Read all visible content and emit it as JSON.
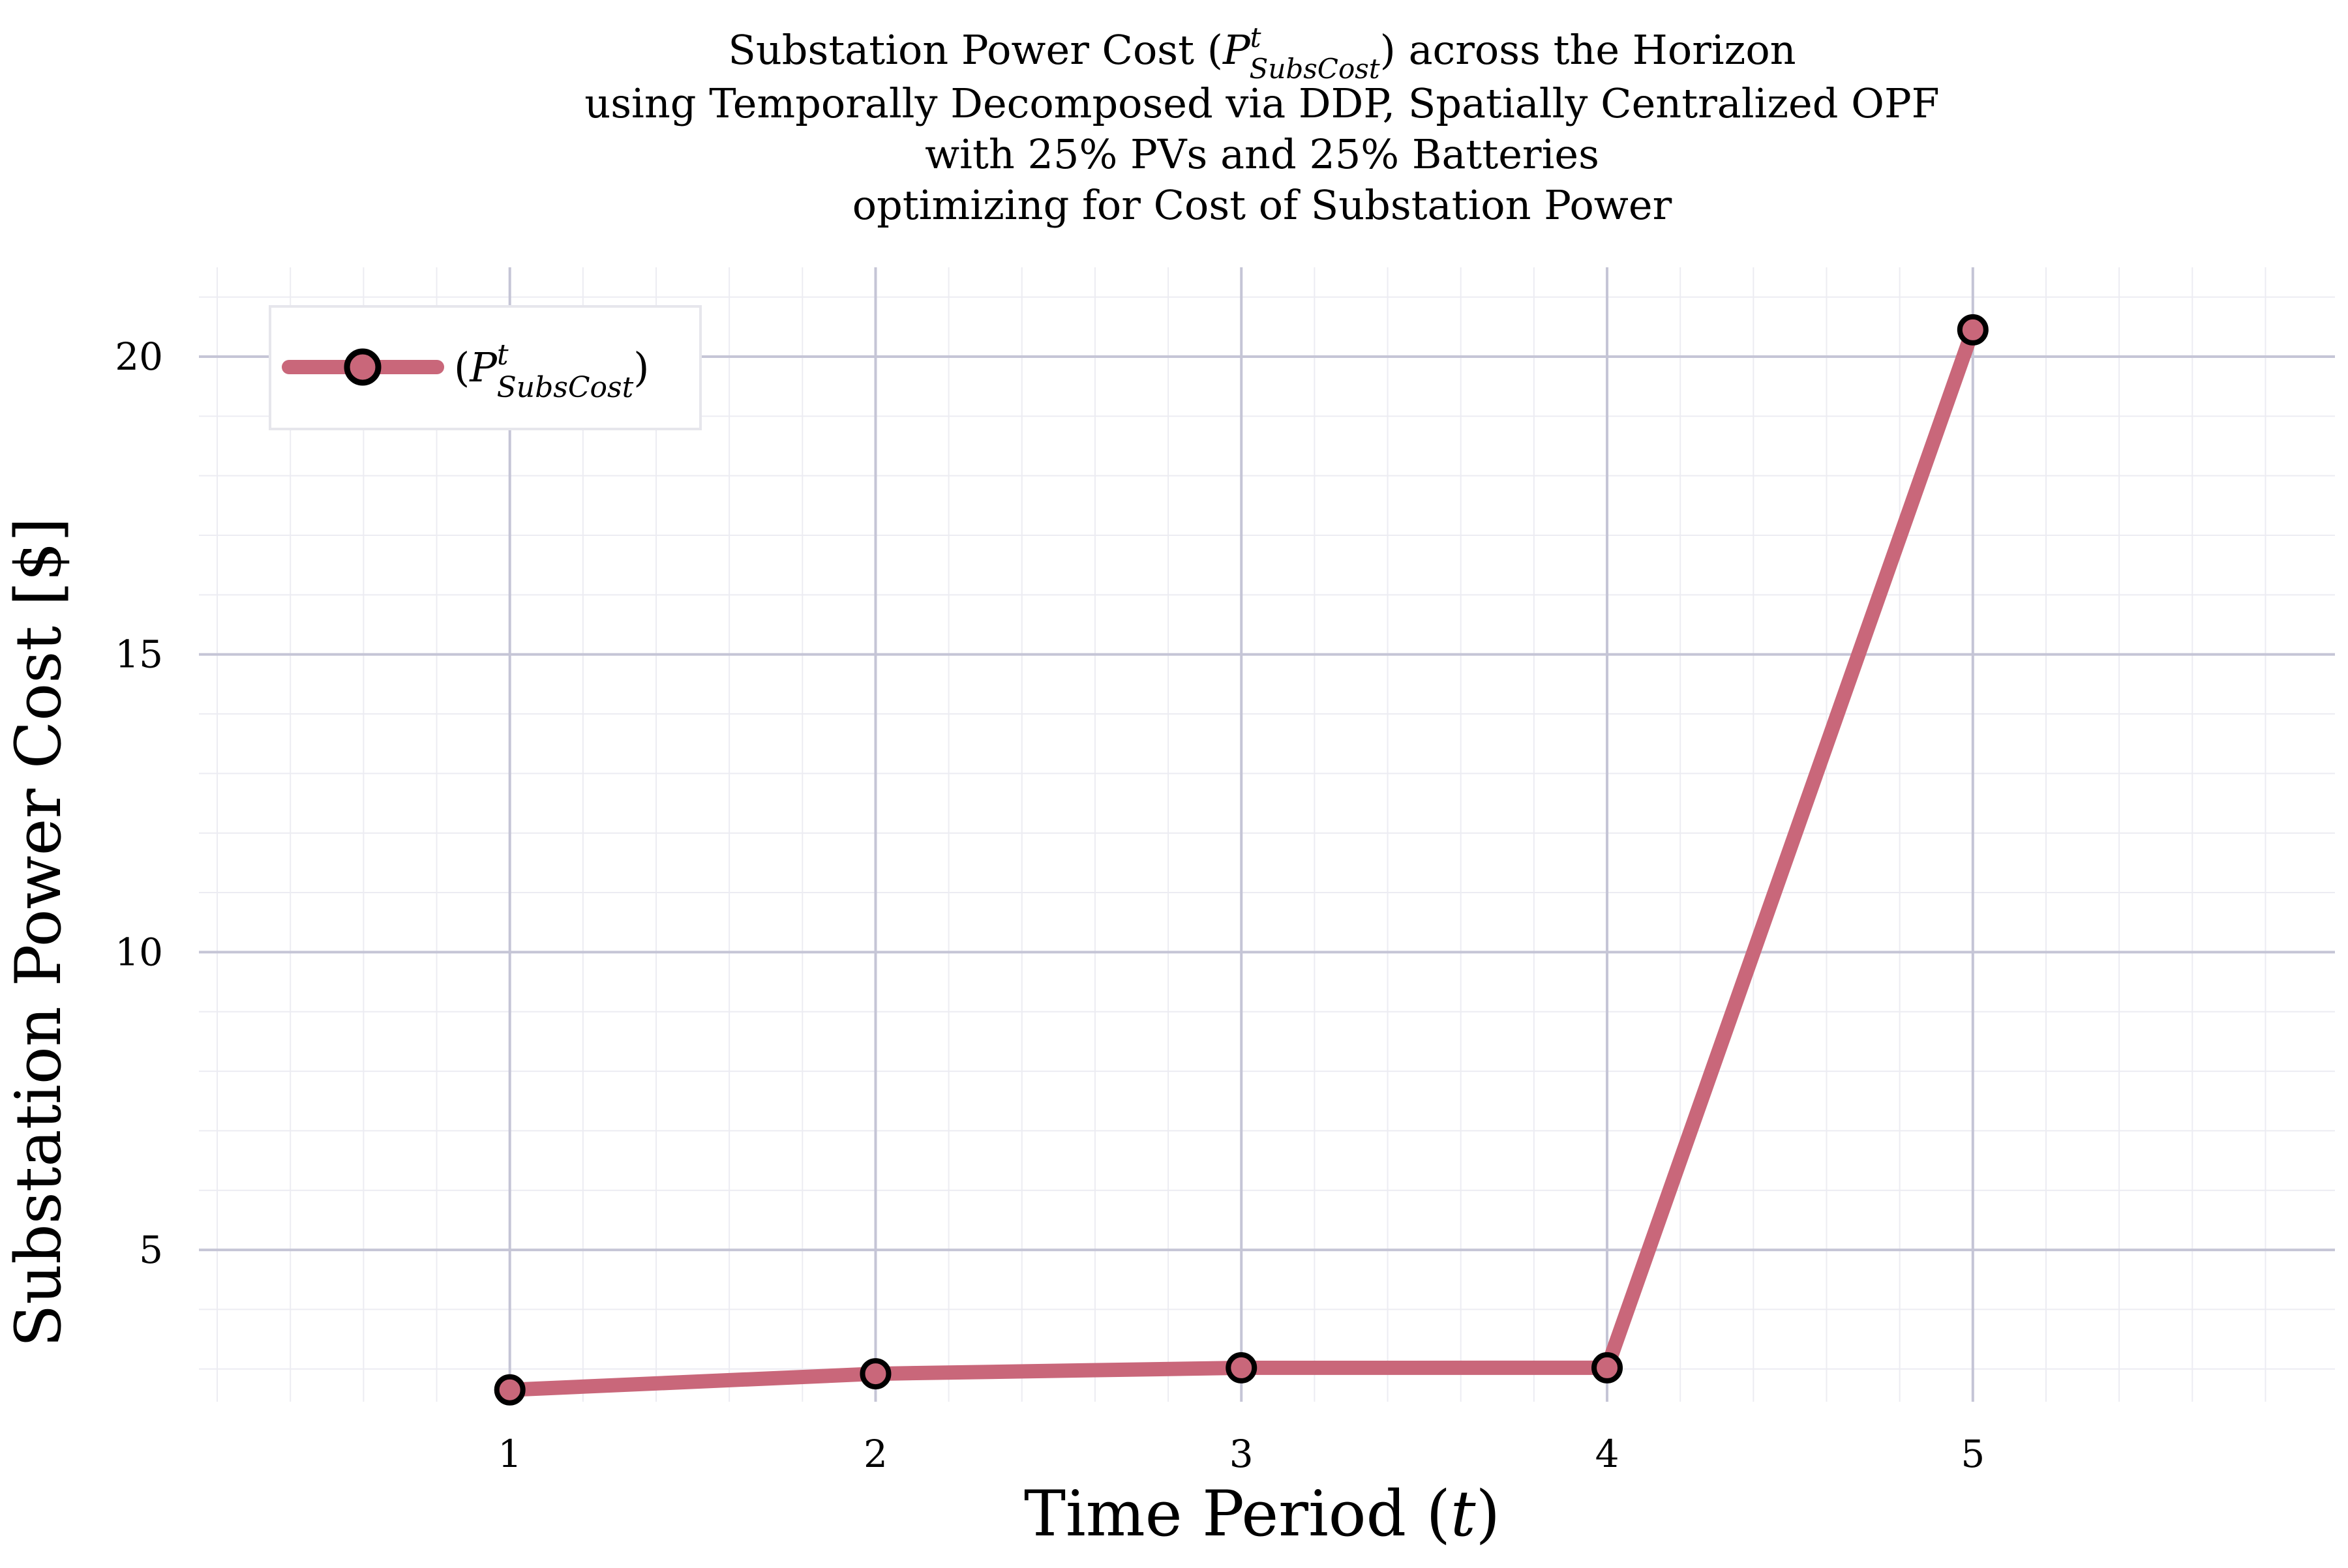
{
  "chart_data": {
    "type": "line",
    "title_lines": [
      {
        "pre": "Substation Power Cost (",
        "sym": "P",
        "sup": "t",
        "sub": "SubsCost",
        "post": ") across the Horizon"
      },
      {
        "text": "using Temporally Decomposed via DDP, Spatially Centralized OPF"
      },
      {
        "text": "with 25% PVs and 25% Batteries"
      },
      {
        "text": "optimizing for Cost of Substation Power"
      }
    ],
    "xlabel": {
      "pre": "Time Period (",
      "sym": "t",
      "post": ")"
    },
    "ylabel": "Substation Power Cost [$]",
    "x": [
      1,
      2,
      3,
      4,
      5
    ],
    "x_ticks": [
      "1",
      "2",
      "3",
      "4",
      "5"
    ],
    "xlim": [
      0.15,
      5.99
    ],
    "y_ticks": [
      "5",
      "10",
      "15",
      "20"
    ],
    "y_tick_values": [
      5,
      10,
      15,
      20
    ],
    "ylim": [
      2.45,
      21.5
    ],
    "grid": true,
    "legend_position": "top-left",
    "series": [
      {
        "legend": {
          "pre": "(",
          "sym": "P",
          "sup": "t",
          "sub": "SubsCost",
          "post": ")"
        },
        "values": [
          2.65,
          2.92,
          3.02,
          3.02,
          20.45
        ],
        "color": "#c9677a",
        "marker_edge": "#000000"
      }
    ]
  }
}
